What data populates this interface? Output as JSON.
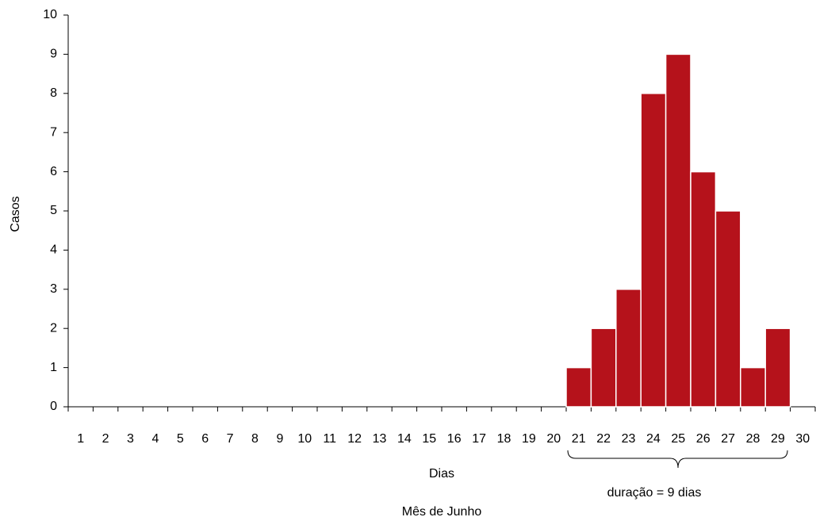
{
  "chart_data": {
    "type": "bar",
    "x_label": "Dias",
    "y_label": "Casos",
    "caption": "Mês de Junho",
    "annotation": "duração = 9 dias",
    "categories": [
      "1",
      "2",
      "3",
      "4",
      "5",
      "6",
      "7",
      "8",
      "9",
      "10",
      "11",
      "12",
      "13",
      "14",
      "15",
      "16",
      "17",
      "18",
      "19",
      "20",
      "21",
      "22",
      "23",
      "24",
      "25",
      "26",
      "27",
      "28",
      "29",
      "30"
    ],
    "values": [
      0,
      0,
      0,
      0,
      0,
      0,
      0,
      0,
      0,
      0,
      0,
      0,
      0,
      0,
      0,
      0,
      0,
      0,
      0,
      0,
      1,
      2,
      3,
      8,
      9,
      6,
      5,
      1,
      2,
      0
    ],
    "color": "#b5121b",
    "ylim": [
      0,
      10
    ],
    "yticks": [
      0,
      1,
      2,
      3,
      4,
      5,
      6,
      7,
      8,
      9,
      10
    ],
    "grid": false
  }
}
